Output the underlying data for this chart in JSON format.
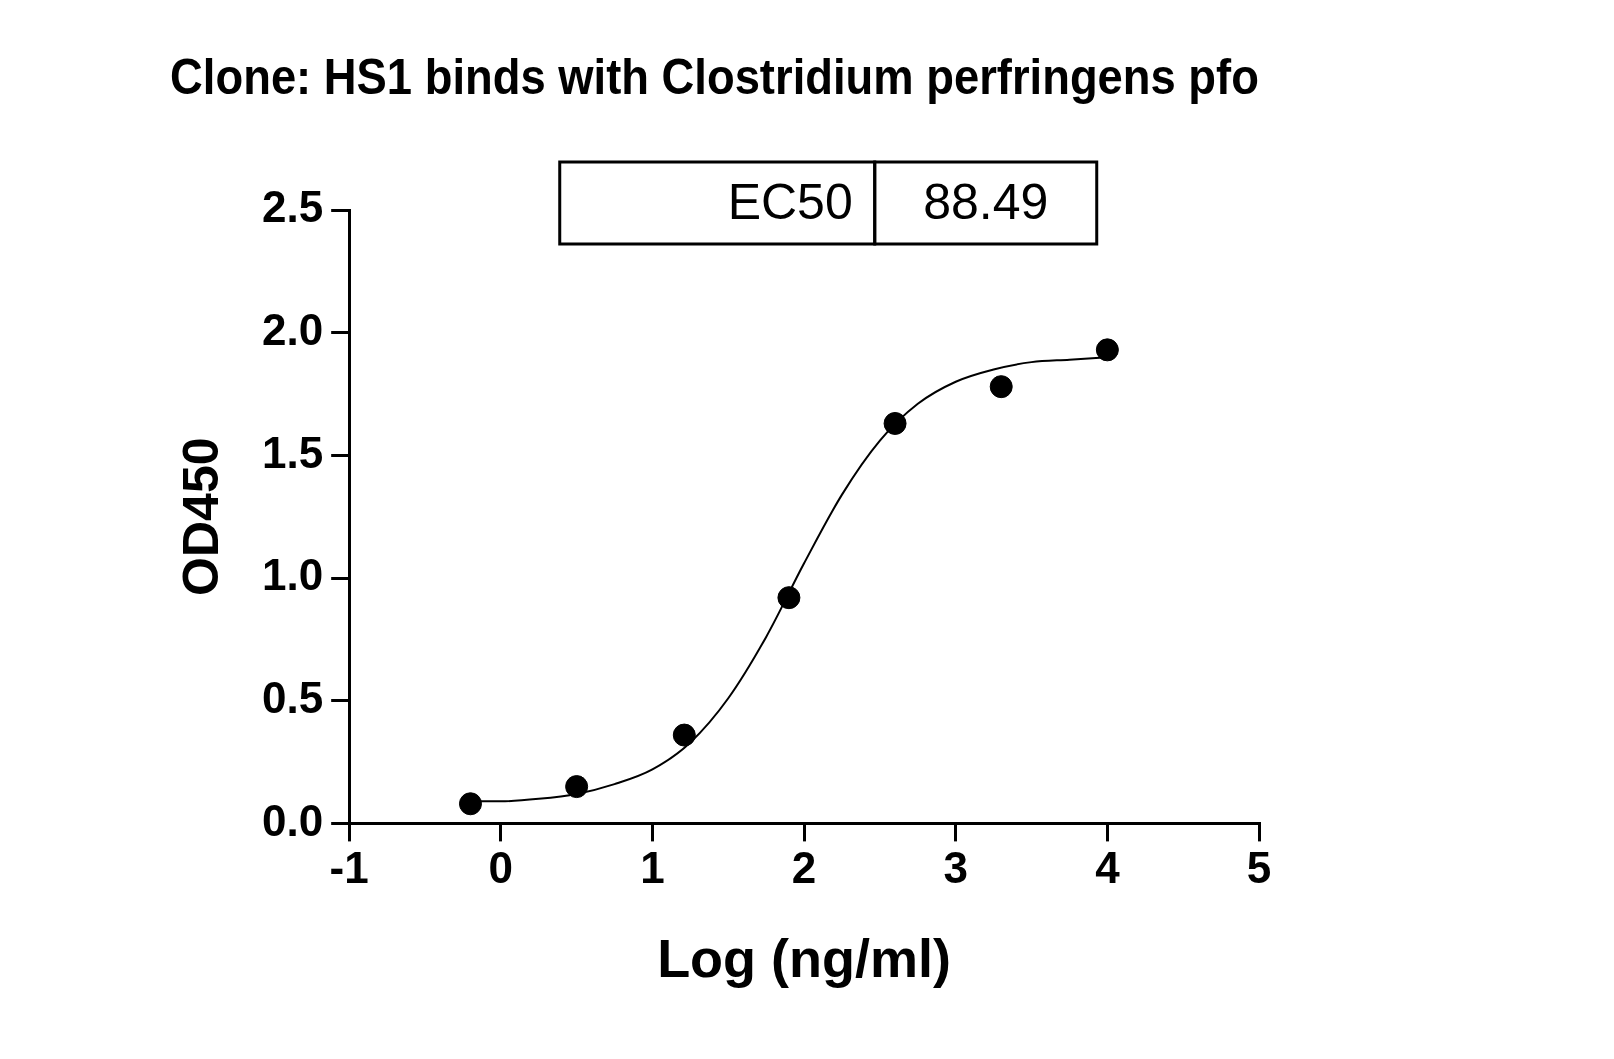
{
  "chart_data": {
    "type": "scatter",
    "title": "Clone: HS1 binds with Clostridium perfringens pfo",
    "xlabel": "Log (ng/ml)",
    "ylabel": "OD450",
    "annotations": [
      "EC50",
      "88.49"
    ],
    "series": [
      {
        "marker": "circle",
        "color": "#000000",
        "x": [
          -0.2,
          0.5,
          1.21,
          1.9,
          2.6,
          3.3,
          4.0
        ],
        "values": [
          0.08,
          0.15,
          0.36,
          0.92,
          1.63,
          1.78,
          1.93
        ]
      },
      {
        "type": "line",
        "marker": "none",
        "color": "#000000",
        "x": [
          -0.2,
          0,
          0.25,
          0.5,
          0.75,
          1,
          1.25,
          1.5,
          1.75,
          2,
          2.25,
          2.5,
          2.75,
          3,
          3.25,
          3.5,
          3.75,
          4
        ],
        "values": [
          0.09,
          0.09,
          0.1,
          0.12,
          0.16,
          0.22,
          0.33,
          0.51,
          0.76,
          1.06,
          1.34,
          1.56,
          1.71,
          1.8,
          1.85,
          1.88,
          1.89,
          1.9
        ]
      }
    ],
    "xlim": [
      -1,
      5
    ],
    "xticks": [
      -1,
      0,
      1,
      2,
      3,
      4,
      5
    ],
    "ylim": [
      0,
      2.5
    ],
    "yticks": [
      {
        "value": 0,
        "label": "0.0"
      },
      0.5,
      {
        "value": 1,
        "label": "1.0"
      },
      1.5,
      {
        "value": 2,
        "label": "2.0"
      },
      2.5
    ],
    "grid": false,
    "legend": false,
    "line_style": "solid"
  }
}
